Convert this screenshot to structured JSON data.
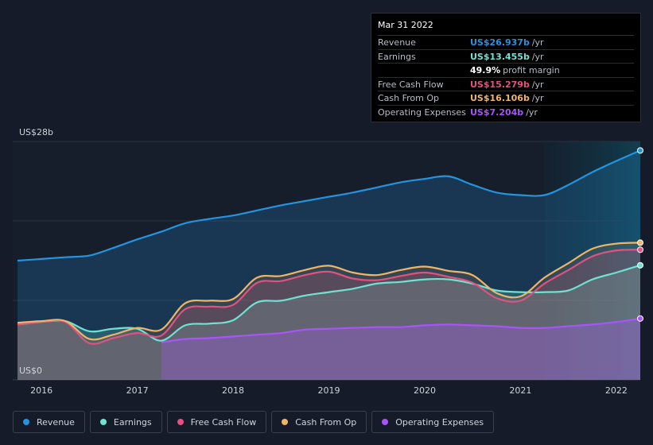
{
  "tooltip": {
    "date": "Mar 31 2022",
    "rows": [
      {
        "label": "Revenue",
        "value": "US$26.937b",
        "unit": "/yr",
        "color": "#2394df"
      },
      {
        "label": "Earnings",
        "value": "US$13.455b",
        "unit": "/yr",
        "color": "#6fe3d3"
      },
      {
        "label": "",
        "value": "49.9%",
        "unit": "profit margin",
        "color": "#ffffff"
      },
      {
        "label": "Free Cash Flow",
        "value": "US$15.279b",
        "unit": "/yr",
        "color": "#e2517f"
      },
      {
        "label": "Cash From Op",
        "value": "US$16.106b",
        "unit": "/yr",
        "color": "#f0b566"
      },
      {
        "label": "Operating Expenses",
        "value": "US$7.204b",
        "unit": "/yr",
        "color": "#a855f7"
      }
    ]
  },
  "legend": [
    {
      "name": "Revenue",
      "color": "#2394df"
    },
    {
      "name": "Earnings",
      "color": "#6fe3d3"
    },
    {
      "name": "Free Cash Flow",
      "color": "#e2517f"
    },
    {
      "name": "Cash From Op",
      "color": "#f0b566"
    },
    {
      "name": "Operating Expenses",
      "color": "#a855f7"
    }
  ],
  "chart_data": {
    "type": "area",
    "y_top_label": "US$28b",
    "y_bottom_label": "US$0",
    "ylim": [
      0,
      28
    ],
    "xlim": [
      2015.7,
      2022.25
    ],
    "x_ticks": [
      {
        "label": "2016",
        "value": 2016.0
      },
      {
        "label": "2017",
        "value": 2017.0
      },
      {
        "label": "2018",
        "value": 2018.0
      },
      {
        "label": "2019",
        "value": 2019.0
      },
      {
        "label": "2020",
        "value": 2020.0
      },
      {
        "label": "2021",
        "value": 2021.0
      },
      {
        "label": "2022",
        "value": 2022.0
      }
    ],
    "highlight_start": 2021.25,
    "series": [
      {
        "name": "Revenue",
        "color": "#2394df",
        "x": [
          2015.75,
          2016.0,
          2016.25,
          2016.5,
          2016.75,
          2017.0,
          2017.25,
          2017.5,
          2017.75,
          2018.0,
          2018.25,
          2018.5,
          2018.75,
          2019.0,
          2019.25,
          2019.5,
          2019.75,
          2020.0,
          2020.25,
          2020.5,
          2020.75,
          2021.0,
          2021.25,
          2021.5,
          2021.75,
          2022.0,
          2022.25
        ],
        "values": [
          14.0,
          14.2,
          14.4,
          14.6,
          15.5,
          16.5,
          17.4,
          18.4,
          18.9,
          19.3,
          19.9,
          20.5,
          21.0,
          21.5,
          22.0,
          22.6,
          23.2,
          23.6,
          23.9,
          22.9,
          22.0,
          21.7,
          21.7,
          22.9,
          24.4,
          25.7,
          26.937
        ]
      },
      {
        "name": "Earnings",
        "color": "#6fe3d3",
        "x": [
          2015.75,
          2016.0,
          2016.25,
          2016.5,
          2016.75,
          2017.0,
          2017.25,
          2017.5,
          2017.75,
          2018.0,
          2018.25,
          2018.5,
          2018.75,
          2019.0,
          2019.25,
          2019.5,
          2019.75,
          2020.0,
          2020.25,
          2020.5,
          2020.75,
          2021.0,
          2021.25,
          2021.5,
          2021.75,
          2022.0,
          2022.25
        ],
        "values": [
          6.5,
          6.8,
          6.9,
          5.7,
          6.0,
          6.0,
          4.6,
          6.4,
          6.6,
          7.0,
          9.1,
          9.3,
          9.9,
          10.3,
          10.7,
          11.3,
          11.5,
          11.8,
          11.8,
          11.3,
          10.5,
          10.3,
          10.3,
          10.5,
          11.8,
          12.6,
          13.455
        ]
      },
      {
        "name": "Free Cash Flow",
        "color": "#e2517f",
        "x": [
          2015.75,
          2016.0,
          2016.25,
          2016.5,
          2016.75,
          2017.0,
          2017.25,
          2017.5,
          2017.75,
          2018.0,
          2018.25,
          2018.5,
          2018.75,
          2019.0,
          2019.25,
          2019.5,
          2019.75,
          2020.0,
          2020.25,
          2020.5,
          2020.75,
          2021.0,
          2021.25,
          2021.5,
          2021.75,
          2022.0,
          2022.25
        ],
        "values": [
          6.5,
          6.8,
          6.8,
          4.3,
          4.9,
          5.5,
          5.2,
          8.3,
          8.6,
          8.8,
          11.4,
          11.6,
          12.3,
          12.7,
          11.9,
          11.7,
          12.2,
          12.6,
          12.1,
          11.4,
          9.6,
          9.3,
          11.3,
          12.9,
          14.5,
          15.2,
          15.279
        ]
      },
      {
        "name": "Cash From Op",
        "color": "#f0b566",
        "x": [
          2015.75,
          2016.0,
          2016.25,
          2016.5,
          2016.75,
          2017.0,
          2017.25,
          2017.5,
          2017.75,
          2018.0,
          2018.25,
          2018.5,
          2018.75,
          2019.0,
          2019.25,
          2019.5,
          2019.75,
          2020.0,
          2020.25,
          2020.5,
          2020.75,
          2021.0,
          2021.25,
          2021.5,
          2021.75,
          2022.0,
          2022.25
        ],
        "values": [
          6.7,
          6.9,
          6.9,
          4.8,
          5.3,
          6.1,
          5.9,
          9.0,
          9.3,
          9.5,
          12.0,
          12.2,
          12.9,
          13.4,
          12.6,
          12.3,
          12.9,
          13.3,
          12.8,
          12.3,
          10.2,
          9.8,
          12.0,
          13.7,
          15.4,
          16.0,
          16.106
        ]
      },
      {
        "name": "Operating Expenses",
        "color": "#a855f7",
        "x": [
          2017.25,
          2017.5,
          2017.75,
          2018.0,
          2018.25,
          2018.5,
          2018.75,
          2019.0,
          2019.25,
          2019.5,
          2019.75,
          2020.0,
          2020.25,
          2020.5,
          2020.75,
          2021.0,
          2021.25,
          2021.5,
          2021.75,
          2022.0,
          2022.25
        ],
        "values": [
          4.4,
          4.8,
          4.9,
          5.1,
          5.3,
          5.5,
          5.9,
          6.0,
          6.1,
          6.2,
          6.2,
          6.4,
          6.5,
          6.4,
          6.3,
          6.1,
          6.1,
          6.3,
          6.5,
          6.8,
          7.204
        ]
      }
    ]
  }
}
